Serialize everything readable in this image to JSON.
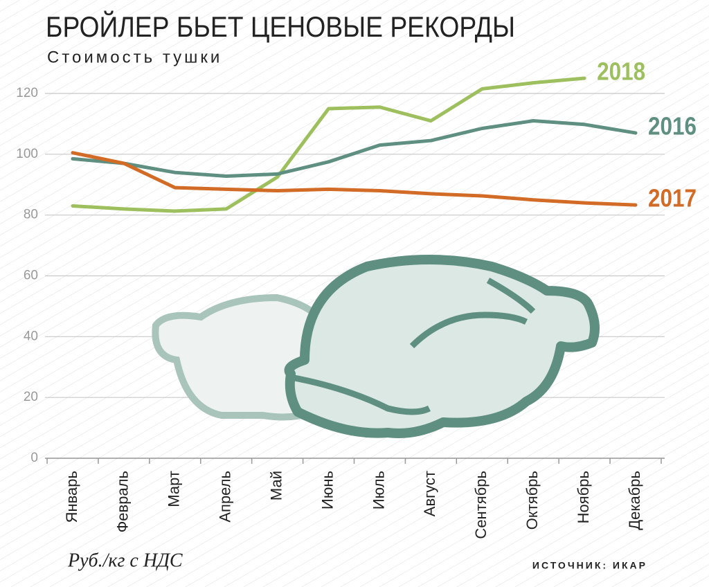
{
  "chart_data": {
    "type": "line",
    "title": "БРОЙЛЕР БЬЕТ ЦЕНОВЫЕ РЕКОРДЫ",
    "subtitle": "Стоимость тушки",
    "note": "Руб./кг с НДС",
    "source": "ИСТОЧНИК: ИКАР",
    "categories": [
      "Январь",
      "Февраль",
      "Март",
      "Апрель",
      "Май",
      "Июнь",
      "Июль",
      "Август",
      "Сентябрь",
      "Октябрь",
      "Ноябрь",
      "Декабрь"
    ],
    "series": [
      {
        "name": "2018",
        "color": "#9dbf5e",
        "values": [
          83,
          82,
          81.3,
          82,
          92.5,
          115,
          115.5,
          111,
          121.5,
          123.5,
          125,
          null
        ]
      },
      {
        "name": "2016",
        "color": "#5e8f80",
        "values": [
          98.5,
          97,
          94,
          92.8,
          93.5,
          97.5,
          103,
          104.5,
          108.5,
          111,
          109.8,
          107
        ]
      },
      {
        "name": "2017",
        "color": "#d26b26",
        "values": [
          100.5,
          97,
          89,
          88.5,
          88,
          88.5,
          88,
          87,
          86.3,
          85,
          84,
          83.3
        ]
      }
    ],
    "ylim": [
      0,
      120
    ],
    "yticks": [
      0,
      20,
      40,
      60,
      80,
      100,
      120
    ],
    "grid": true
  }
}
